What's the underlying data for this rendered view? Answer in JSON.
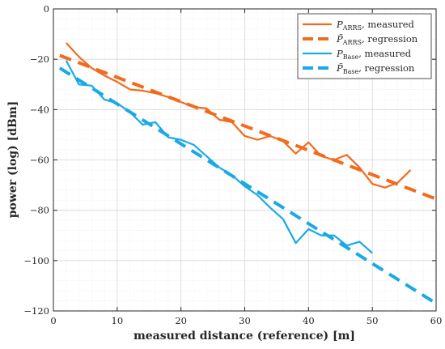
{
  "chart_data": {
    "type": "line",
    "title": "",
    "xlabel": "measured distance (reference) [m]",
    "ylabel": "power (log) [dBm]",
    "xlim": [
      0,
      60
    ],
    "ylim": [
      -120,
      0
    ],
    "xticks": [
      0,
      10,
      20,
      30,
      40,
      50,
      60
    ],
    "yticks": [
      0,
      -20,
      -40,
      -60,
      -80,
      -100,
      -120
    ],
    "grid": true,
    "minor_grid": true,
    "legend_position": "top-right",
    "series": [
      {
        "name": "P_ARRS, measured",
        "legend": {
          "sym": "P",
          "sub": "ARRS",
          "tilde": false,
          "rest": ", measured"
        },
        "color": "#F26B1D",
        "style": "solid",
        "x": [
          2,
          4,
          6,
          8,
          10,
          12,
          14,
          16,
          18,
          20,
          22,
          24,
          26,
          28,
          30,
          32,
          34,
          36,
          38,
          40,
          42,
          44,
          46,
          48,
          50,
          52,
          54,
          56
        ],
        "y": [
          -13.5,
          -19,
          -23.5,
          -26.5,
          -29,
          -32,
          -32.5,
          -33.5,
          -35,
          -37,
          -39,
          -39.5,
          -44,
          -45,
          -50.5,
          -52,
          -50.5,
          -52.5,
          -57.5,
          -53,
          -58.5,
          -60,
          -58,
          -63,
          -69.5,
          -71,
          -69,
          -64
        ]
      },
      {
        "name": "P̃_ARRS, regression",
        "legend": {
          "sym": "P",
          "sub": "ARRS",
          "tilde": true,
          "rest": ", regression"
        },
        "color": "#F26B1D",
        "style": "dashed",
        "x": [
          1,
          60
        ],
        "y": [
          -18.5,
          -75.5
        ]
      },
      {
        "name": "P_Base, measured",
        "legend": {
          "sym": "P",
          "sub": "Base",
          "tilde": false,
          "rest": ", measured"
        },
        "color": "#1AA9E6",
        "style": "solid",
        "x": [
          2,
          4,
          6,
          8,
          10,
          12,
          14,
          16,
          18,
          20,
          22,
          24,
          26,
          28,
          30,
          32,
          34,
          36,
          38,
          40,
          42,
          44,
          46,
          48,
          50
        ],
        "y": [
          -20.5,
          -30,
          -30.5,
          -36,
          -37.5,
          -41,
          -46,
          -45,
          -51,
          -52,
          -54,
          -58.5,
          -63,
          -66,
          -70.5,
          -74,
          -79,
          -83.5,
          -93,
          -87.5,
          -90,
          -90,
          -94,
          -92.5,
          -97
        ]
      },
      {
        "name": "P̃_Base, regression",
        "legend": {
          "sym": "P",
          "sub": "Base",
          "tilde": true,
          "rest": ", regression"
        },
        "color": "#1AA9E6",
        "style": "dashed",
        "x": [
          1,
          60
        ],
        "y": [
          -23.5,
          -117
        ]
      }
    ]
  }
}
